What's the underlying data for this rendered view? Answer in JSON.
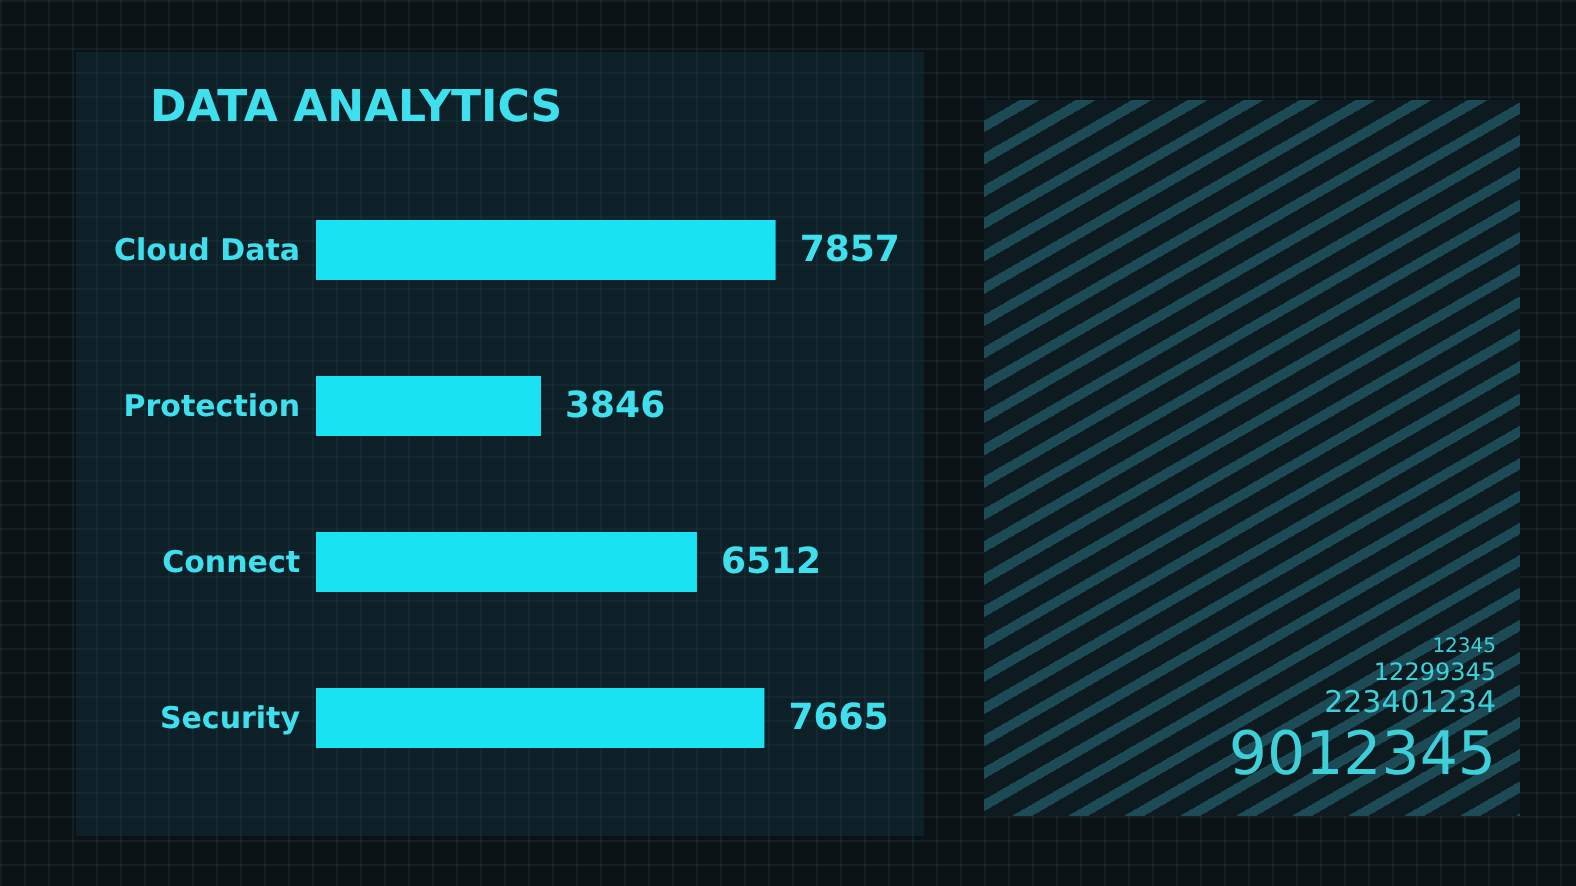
{
  "chart_data": {
    "type": "bar",
    "orientation": "horizontal",
    "title": "DATA ANALYTICS",
    "categories": [
      "Cloud Data",
      "Protection",
      "Connect",
      "Security"
    ],
    "values": [
      7857,
      3846,
      6512,
      7665
    ],
    "data_labels": true,
    "color": "#19e3f3",
    "annotations": [
      "12345",
      "12299345",
      "223401234",
      "9012345"
    ]
  }
}
